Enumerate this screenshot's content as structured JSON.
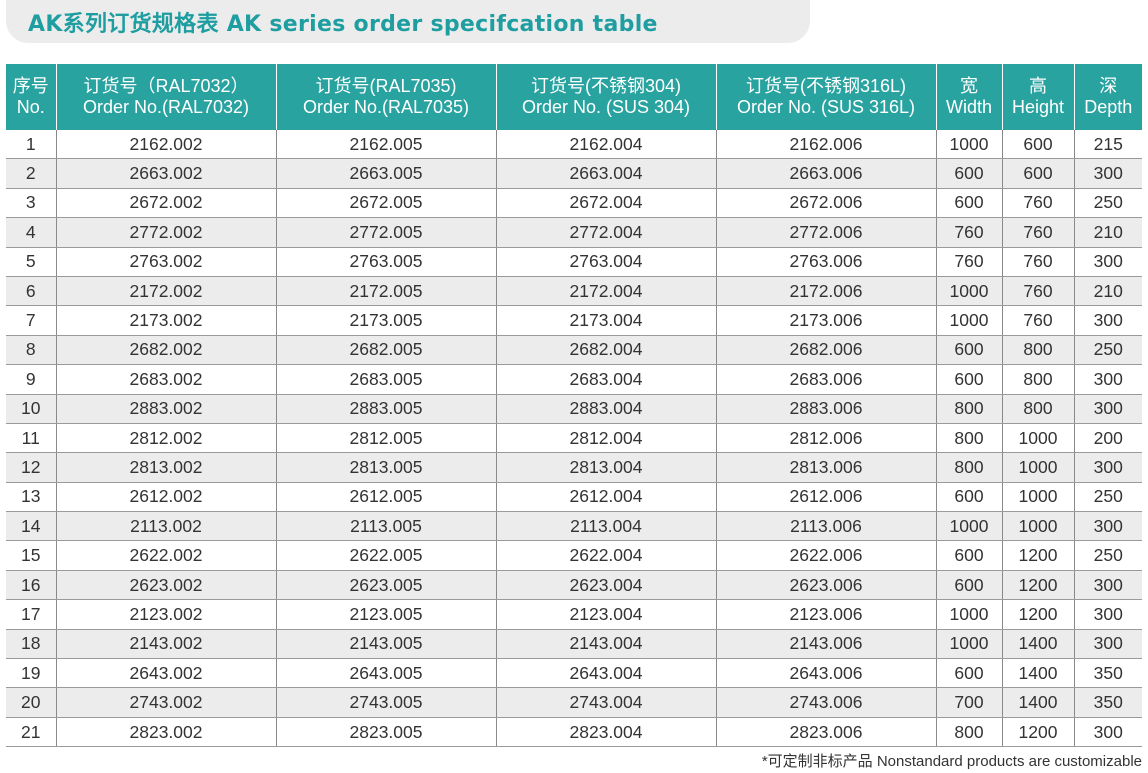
{
  "title": "AK系列订货规格表 AK series order specifcation table",
  "table": {
    "headers": [
      {
        "cn": "序号",
        "en": "No."
      },
      {
        "cn": "订货号（RAL7032）",
        "en": "Order No.(RAL7032)"
      },
      {
        "cn": "订货号(RAL7035)",
        "en": "Order No.(RAL7035)"
      },
      {
        "cn": "订货号(不锈钢304)",
        "en": "Order No. (SUS 304)"
      },
      {
        "cn": "订货号(不锈钢316L)",
        "en": "Order No. (SUS 316L)"
      },
      {
        "cn": "宽",
        "en": "Width"
      },
      {
        "cn": "高",
        "en": "Height"
      },
      {
        "cn": "深",
        "en": "Depth"
      }
    ],
    "rows": [
      [
        "1",
        "2162.002",
        "2162.005",
        "2162.004",
        "2162.006",
        "1000",
        "600",
        "215"
      ],
      [
        "2",
        "2663.002",
        "2663.005",
        "2663.004",
        "2663.006",
        "600",
        "600",
        "300"
      ],
      [
        "3",
        "2672.002",
        "2672.005",
        "2672.004",
        "2672.006",
        "600",
        "760",
        "250"
      ],
      [
        "4",
        "2772.002",
        "2772.005",
        "2772.004",
        "2772.006",
        "760",
        "760",
        "210"
      ],
      [
        "5",
        "2763.002",
        "2763.005",
        "2763.004",
        "2763.006",
        "760",
        "760",
        "300"
      ],
      [
        "6",
        "2172.002",
        "2172.005",
        "2172.004",
        "2172.006",
        "1000",
        "760",
        "210"
      ],
      [
        "7",
        "2173.002",
        "2173.005",
        "2173.004",
        "2173.006",
        "1000",
        "760",
        "300"
      ],
      [
        "8",
        "2682.002",
        "2682.005",
        "2682.004",
        "2682.006",
        "600",
        "800",
        "250"
      ],
      [
        "9",
        "2683.002",
        "2683.005",
        "2683.004",
        "2683.006",
        "600",
        "800",
        "300"
      ],
      [
        "10",
        "2883.002",
        "2883.005",
        "2883.004",
        "2883.006",
        "800",
        "800",
        "300"
      ],
      [
        "11",
        "2812.002",
        "2812.005",
        "2812.004",
        "2812.006",
        "800",
        "1000",
        "200"
      ],
      [
        "12",
        "2813.002",
        "2813.005",
        "2813.004",
        "2813.006",
        "800",
        "1000",
        "300"
      ],
      [
        "13",
        "2612.002",
        "2612.005",
        "2612.004",
        "2612.006",
        "600",
        "1000",
        "250"
      ],
      [
        "14",
        "2113.002",
        "2113.005",
        "2113.004",
        "2113.006",
        "1000",
        "1000",
        "300"
      ],
      [
        "15",
        "2622.002",
        "2622.005",
        "2622.004",
        "2622.006",
        "600",
        "1200",
        "250"
      ],
      [
        "16",
        "2623.002",
        "2623.005",
        "2623.004",
        "2623.006",
        "600",
        "1200",
        "300"
      ],
      [
        "17",
        "2123.002",
        "2123.005",
        "2123.004",
        "2123.006",
        "1000",
        "1200",
        "300"
      ],
      [
        "18",
        "2143.002",
        "2143.005",
        "2143.004",
        "2143.006",
        "1000",
        "1400",
        "300"
      ],
      [
        "19",
        "2643.002",
        "2643.005",
        "2643.004",
        "2643.006",
        "600",
        "1400",
        "350"
      ],
      [
        "20",
        "2743.002",
        "2743.005",
        "2743.004",
        "2743.006",
        "700",
        "1400",
        "350"
      ],
      [
        "21",
        "2823.002",
        "2823.005",
        "2823.004",
        "2823.006",
        "800",
        "1200",
        "300"
      ]
    ]
  },
  "footnote": "*可定制非标产品  Nonstandard products are customizable",
  "colors": {
    "header_bg": "#29a3a0",
    "title_text": "#1e9ea0",
    "title_bar_bg": "#ececec",
    "zebra_row": "#ececec"
  }
}
